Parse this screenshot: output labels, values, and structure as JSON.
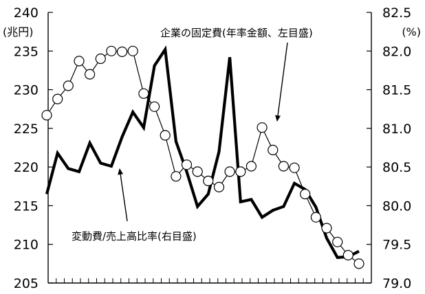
{
  "chart_data": {
    "type": "line",
    "x_tick_count": 41,
    "left_axis": {
      "unit": "(兆円)",
      "ylim": [
        205,
        240
      ],
      "ticks": [
        "240",
        "235",
        "230",
        "225",
        "220",
        "215",
        "210",
        "205"
      ]
    },
    "right_axis": {
      "unit": "(%)",
      "ylim": [
        79.0,
        82.5
      ],
      "ticks": [
        "82.5",
        "82.0",
        "81.5",
        "81.0",
        "80.5",
        "80.0",
        "79.5",
        "79.0"
      ]
    },
    "series": [
      {
        "name": "企業の固定費(年率金額、左目盛)",
        "axis": "left",
        "style": "thin-line-open-circles",
        "values": [
          226.7,
          228.8,
          230.5,
          233.7,
          232.0,
          234.0,
          235.0,
          234.9,
          235.0,
          229.5,
          227.8,
          224.1,
          218.8,
          220.3,
          219.4,
          218.2,
          217.4,
          219.4,
          219.4,
          220.1,
          225.1,
          222.2,
          220.1,
          219.9,
          216.5,
          213.5,
          212.1,
          210.3,
          208.6,
          207.5
        ]
      },
      {
        "name": "変動費/売上高比率(右目盛)",
        "axis": "right",
        "style": "thick-line",
        "values": [
          80.15,
          80.68,
          80.48,
          80.44,
          80.81,
          80.55,
          80.51,
          80.89,
          81.21,
          81.01,
          81.81,
          82.02,
          80.83,
          80.44,
          79.99,
          80.15,
          80.7,
          81.92,
          80.05,
          80.08,
          79.85,
          79.94,
          79.99,
          80.29,
          80.21,
          79.98,
          79.58,
          79.33,
          79.34,
          79.41
        ]
      }
    ],
    "annotations": [
      {
        "text": "企業の固定費(年率金額、左目盛)",
        "points_to_series": 0
      },
      {
        "text": "変動費/売上高比率(右目盛)",
        "points_to_series": 1
      }
    ],
    "grid": false
  }
}
